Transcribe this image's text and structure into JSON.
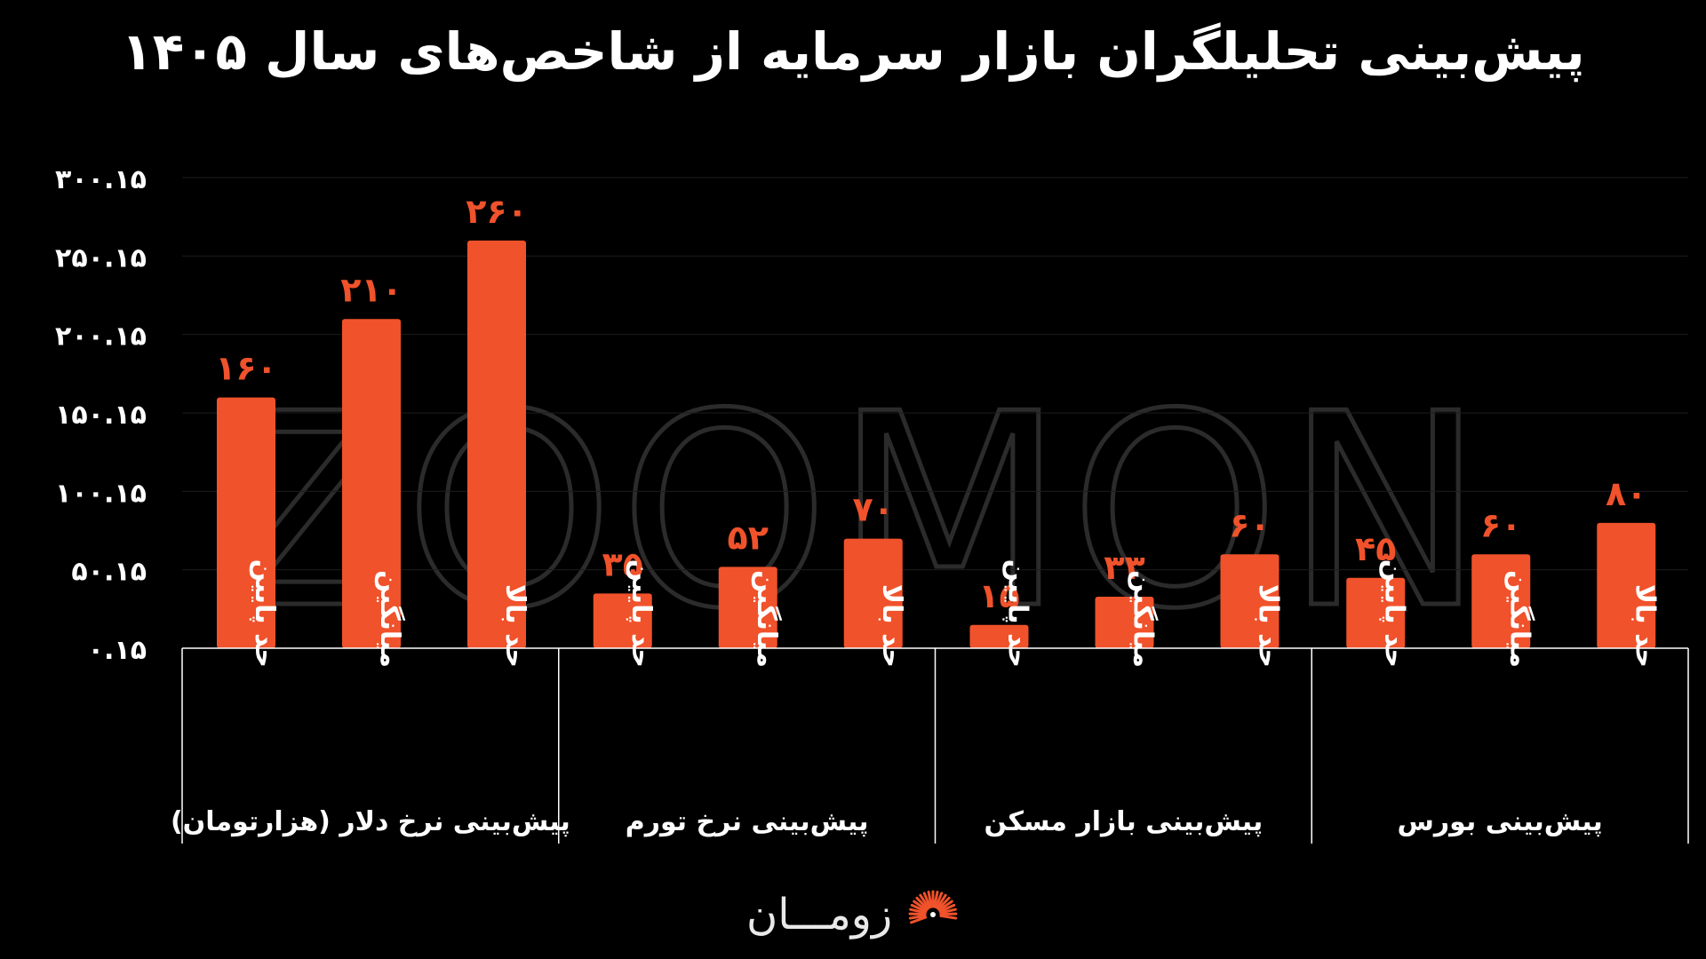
{
  "title": "پیش‌بینی تحلیلگران بازار سرمایه از شاخص‌های سال ۱۴۰۵",
  "watermark": "ZOOMON",
  "brand": {
    "name": "زومـــان",
    "logo_icon": "sunburst-logo-icon"
  },
  "colors": {
    "bar": "#f0522b",
    "background": "#000000",
    "label": "#f0522b",
    "axis": "#ffffff"
  },
  "chart_data": {
    "type": "bar",
    "title": "پیش‌بینی تحلیلگران بازار سرمایه از شاخص‌های سال ۱۴۰۵",
    "ylim": [
      0.15,
      300.15
    ],
    "yticks": [
      0.15,
      50.15,
      100.15,
      150.15,
      200.15,
      250.15,
      300.15
    ],
    "ytick_labels": [
      "۰.۱۵",
      "۵۰.۱۵",
      "۱۰۰.۱۵",
      "۱۵۰.۱۵",
      "۲۰۰.۱۵",
      "۲۵۰.۱۵",
      "۳۰۰.۱۵"
    ],
    "grid": true,
    "groups": [
      {
        "name": "پیش‌بینی نرخ دلار (هزارتومان)",
        "categories": [
          "حد پایین",
          "میانگین",
          "حد بالا"
        ],
        "values": [
          160,
          210,
          260
        ],
        "value_labels": [
          "۱۶۰",
          "۲۱۰",
          "۲۶۰"
        ]
      },
      {
        "name": "پیش‌بینی نرخ تورم",
        "categories": [
          "حد پایین",
          "میانگین",
          "حد بالا"
        ],
        "values": [
          35,
          52,
          70
        ],
        "value_labels": [
          "۳۵",
          "۵۲",
          "۷۰"
        ]
      },
      {
        "name": "پیش‌بینی بازار مسکن",
        "categories": [
          "حد پایین",
          "میانگین",
          "حد بالا"
        ],
        "values": [
          15,
          33,
          60
        ],
        "value_labels": [
          "۱۵",
          "۳۳",
          "۶۰"
        ]
      },
      {
        "name": "پیش‌بینی بورس",
        "categories": [
          "حد پایین",
          "میانگین",
          "حد بالا"
        ],
        "values": [
          45,
          60,
          80
        ],
        "value_labels": [
          "۴۵",
          "۶۰",
          "۸۰"
        ]
      }
    ]
  }
}
